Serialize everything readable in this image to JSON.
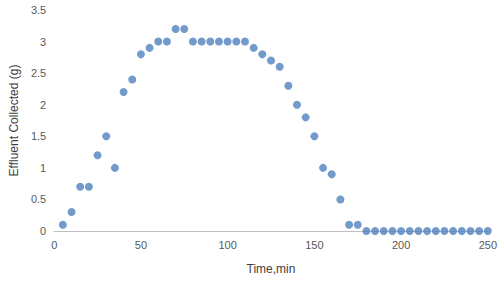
{
  "chart_data": {
    "type": "scatter",
    "x_label": "Time,min",
    "y_label": "Effluent Collected (g)",
    "x": [
      5,
      10,
      15,
      20,
      25,
      30,
      35,
      40,
      45,
      50,
      55,
      60,
      65,
      70,
      75,
      80,
      85,
      90,
      95,
      100,
      105,
      110,
      115,
      120,
      125,
      130,
      135,
      140,
      145,
      150,
      155,
      160,
      165,
      170,
      175,
      180,
      185,
      190,
      195,
      200,
      205,
      210,
      215,
      220,
      225,
      230,
      235,
      240,
      245,
      250
    ],
    "values": [
      0.1,
      0.3,
      0.7,
      0.7,
      1.2,
      1.5,
      1.0,
      2.2,
      2.4,
      2.8,
      2.9,
      3.0,
      3.0,
      3.2,
      3.2,
      3.0,
      3.0,
      3.0,
      3.0,
      3.0,
      3.0,
      3.0,
      2.9,
      2.8,
      2.7,
      2.6,
      2.3,
      2.0,
      1.8,
      1.5,
      1.0,
      0.9,
      0.5,
      0.1,
      0.1,
      0,
      0,
      0,
      0,
      0,
      0,
      0,
      0,
      0,
      0,
      0,
      0,
      0,
      0,
      0
    ],
    "color": "#4f81bd",
    "marker": "circle",
    "xlim": [
      0,
      250
    ],
    "xticks": [
      0,
      50,
      100,
      150,
      200,
      250
    ],
    "ylim": [
      0,
      3.5
    ],
    "yticks": [
      0,
      0.5,
      1,
      1.5,
      2,
      2.5,
      3,
      3.5
    ],
    "grid": false
  }
}
